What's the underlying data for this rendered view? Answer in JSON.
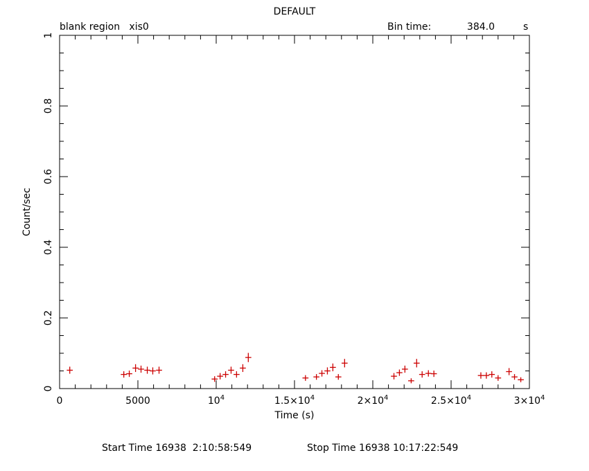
{
  "chart_data": {
    "type": "scatter",
    "title": "DEFAULT",
    "header_left": "blank region   xis0",
    "bin_time_label": "Bin time:",
    "bin_time_value": "384.0",
    "bin_time_unit": "s",
    "xlabel": "Time (s)",
    "ylabel": "Count/sec",
    "xlim": [
      0,
      30000
    ],
    "ylim": [
      0,
      1
    ],
    "x_ticks": [
      {
        "value": 0,
        "label": "0"
      },
      {
        "value": 5000,
        "label": "5000"
      },
      {
        "value": 10000,
        "label": "10",
        "exp": "4"
      },
      {
        "value": 15000,
        "label": "1.5×10",
        "exp": "4"
      },
      {
        "value": 20000,
        "label": "2×10",
        "exp": "4"
      },
      {
        "value": 25000,
        "label": "2.5×10",
        "exp": "4"
      },
      {
        "value": 30000,
        "label": "3×10",
        "exp": "4"
      }
    ],
    "y_ticks": [
      {
        "value": 0,
        "label": "0"
      },
      {
        "value": 0.2,
        "label": "0.2"
      },
      {
        "value": 0.4,
        "label": "0.4"
      },
      {
        "value": 0.6,
        "label": "0.6"
      },
      {
        "value": 0.8,
        "label": "0.8"
      },
      {
        "value": 1,
        "label": "1"
      }
    ],
    "x_minor_step": 1000,
    "y_minor_step": 0.05,
    "color": "#cc0000",
    "x_half_error": 192,
    "points": [
      {
        "x": 650,
        "y": 0.052,
        "dy": 0.01
      },
      {
        "x": 4100,
        "y": 0.04,
        "dy": 0.009
      },
      {
        "x": 4450,
        "y": 0.042,
        "dy": 0.009
      },
      {
        "x": 4850,
        "y": 0.058,
        "dy": 0.011
      },
      {
        "x": 5200,
        "y": 0.055,
        "dy": 0.01
      },
      {
        "x": 5600,
        "y": 0.052,
        "dy": 0.01
      },
      {
        "x": 5950,
        "y": 0.05,
        "dy": 0.01
      },
      {
        "x": 6350,
        "y": 0.052,
        "dy": 0.01
      },
      {
        "x": 9900,
        "y": 0.027,
        "dy": 0.008
      },
      {
        "x": 10250,
        "y": 0.035,
        "dy": 0.009
      },
      {
        "x": 10600,
        "y": 0.04,
        "dy": 0.009
      },
      {
        "x": 10950,
        "y": 0.052,
        "dy": 0.01
      },
      {
        "x": 11300,
        "y": 0.04,
        "dy": 0.009
      },
      {
        "x": 11700,
        "y": 0.058,
        "dy": 0.011
      },
      {
        "x": 12050,
        "y": 0.088,
        "dy": 0.013
      },
      {
        "x": 15700,
        "y": 0.03,
        "dy": 0.008
      },
      {
        "x": 16400,
        "y": 0.033,
        "dy": 0.008
      },
      {
        "x": 16750,
        "y": 0.043,
        "dy": 0.009
      },
      {
        "x": 17100,
        "y": 0.05,
        "dy": 0.01
      },
      {
        "x": 17450,
        "y": 0.06,
        "dy": 0.011
      },
      {
        "x": 17800,
        "y": 0.033,
        "dy": 0.008
      },
      {
        "x": 18200,
        "y": 0.072,
        "dy": 0.012
      },
      {
        "x": 21350,
        "y": 0.035,
        "dy": 0.009
      },
      {
        "x": 21700,
        "y": 0.045,
        "dy": 0.009
      },
      {
        "x": 22050,
        "y": 0.055,
        "dy": 0.01
      },
      {
        "x": 22450,
        "y": 0.022,
        "dy": 0.007
      },
      {
        "x": 22800,
        "y": 0.072,
        "dy": 0.012
      },
      {
        "x": 23150,
        "y": 0.04,
        "dy": 0.009
      },
      {
        "x": 23550,
        "y": 0.043,
        "dy": 0.009
      },
      {
        "x": 23900,
        "y": 0.042,
        "dy": 0.009
      },
      {
        "x": 26900,
        "y": 0.037,
        "dy": 0.009
      },
      {
        "x": 27250,
        "y": 0.037,
        "dy": 0.009
      },
      {
        "x": 27600,
        "y": 0.04,
        "dy": 0.009
      },
      {
        "x": 28000,
        "y": 0.03,
        "dy": 0.008
      },
      {
        "x": 28700,
        "y": 0.048,
        "dy": 0.01
      },
      {
        "x": 29050,
        "y": 0.033,
        "dy": 0.008
      },
      {
        "x": 29450,
        "y": 0.025,
        "dy": 0.007
      }
    ]
  },
  "footer": {
    "start_time": "Start Time 16938  2:10:58:549",
    "stop_time": "Stop Time 16938 10:17:22:549"
  }
}
